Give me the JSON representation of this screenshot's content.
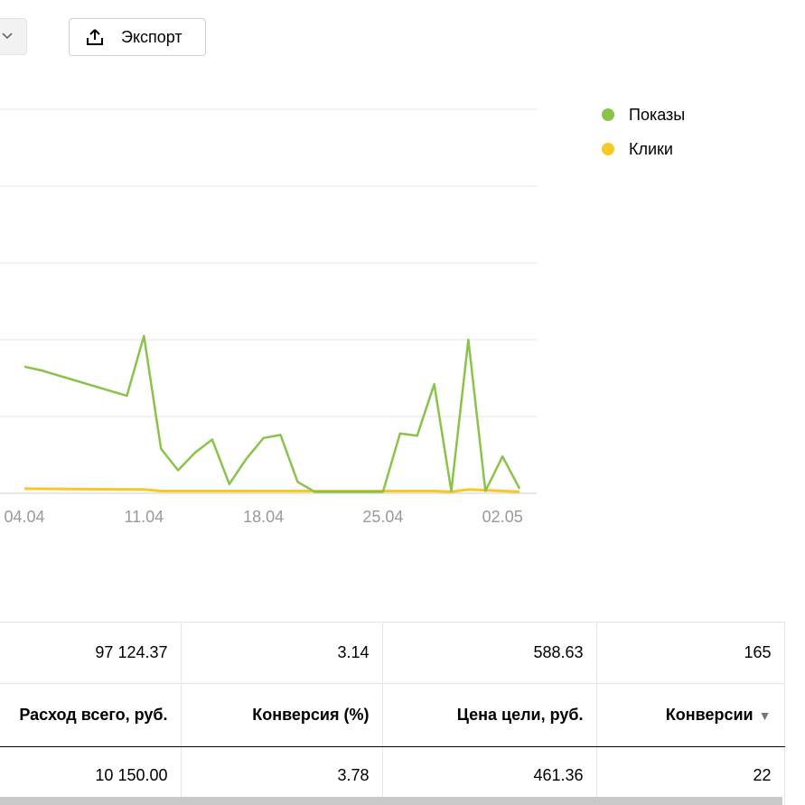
{
  "toolbar": {
    "export_label": "Экспорт"
  },
  "colors": {
    "impressions": "#8bc34a",
    "clicks": "#f7c928",
    "grid": "#e6e6e6",
    "tick_text": "#999999"
  },
  "chart_data": {
    "type": "line",
    "x_tick_labels": [
      "04.04",
      "11.04",
      "18.04",
      "25.04",
      "02.05"
    ],
    "ylim": [
      0,
      5
    ],
    "grid": true,
    "legend_position": "top-right",
    "series": [
      {
        "name": "Показы",
        "color": "#8bc34a",
        "x": [
          "04.04",
          "05.04",
          "10.04",
          "11.04",
          "12.04",
          "13.04",
          "14.04",
          "15.04",
          "16.04",
          "17.04",
          "18.04",
          "19.04",
          "20.04",
          "21.04",
          "22.04",
          "23.04",
          "24.04",
          "25.04",
          "26.04",
          "27.04",
          "28.04",
          "29.04",
          "30.04",
          "01.05",
          "02.05",
          "03.05"
        ],
        "values": [
          1.65,
          1.6,
          1.27,
          2.05,
          0.58,
          0.3,
          0.53,
          0.7,
          0.12,
          0.45,
          0.72,
          0.76,
          0.15,
          0.02,
          0.02,
          0.02,
          0.02,
          0.02,
          0.78,
          0.75,
          1.42,
          0.03,
          2.0,
          0.03,
          0.48,
          0.06
        ]
      },
      {
        "name": "Клики",
        "color": "#f7c928",
        "x": [
          "04.04",
          "11.04",
          "12.04",
          "18.04",
          "25.04",
          "28.04",
          "29.04",
          "30.04",
          "03.05"
        ],
        "values": [
          0.06,
          0.05,
          0.03,
          0.03,
          0.03,
          0.03,
          0.02,
          0.05,
          0.02
        ]
      }
    ]
  },
  "legend": [
    {
      "label": "Показы",
      "color": "#8bc34a"
    },
    {
      "label": "Клики",
      "color": "#f7c928"
    }
  ],
  "table": {
    "totals": [
      "97 124.37",
      "3.14",
      "588.63",
      "165"
    ],
    "headers": [
      "Расход всего, руб.",
      "Конверсия (%)",
      "Цена цели, руб.",
      "Конверсии"
    ],
    "sort_indicator": "▼",
    "rows": [
      [
        "10 150.00",
        "3.78",
        "461.36",
        "22"
      ]
    ]
  },
  "icons": {
    "dropdown": "chevron-down-icon",
    "export": "upload-icon"
  }
}
